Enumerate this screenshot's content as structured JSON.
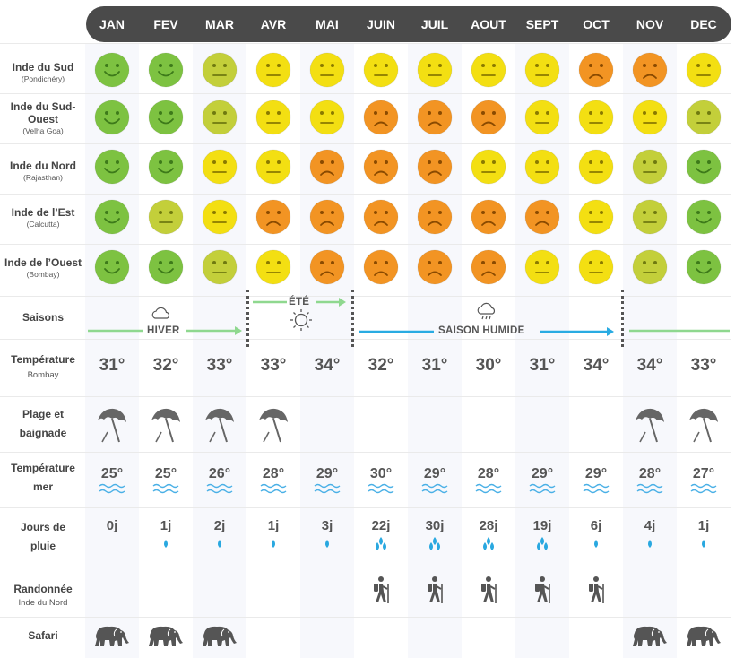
{
  "months": [
    "JAN",
    "FEV",
    "MAR",
    "AVR",
    "MAI",
    "JUIN",
    "JUIL",
    "AOUT",
    "SEPT",
    "OCT",
    "NOV",
    "DEC"
  ],
  "colors": {
    "green": "#7dc241",
    "lime": "#c3cf3a",
    "yellow": "#f3df12",
    "orange": "#f29423",
    "header_bg": "#4a4a4a",
    "winter_arrow": "#8fd88f",
    "wet_arrow": "#29abe2",
    "drop": "#29a8e0",
    "wave": "#4ab0e6"
  },
  "regions": [
    {
      "name": "Inde du Sud",
      "sub": "(Pondichéry)",
      "moods": [
        "happy",
        "happy",
        "neutral-lime",
        "neutral",
        "neutral",
        "neutral",
        "neutral",
        "neutral",
        "neutral",
        "sad",
        "sad",
        "neutral"
      ]
    },
    {
      "name": "Inde du Sud-Ouest",
      "sub": "(Velha Goa)",
      "moods": [
        "happy",
        "happy",
        "neutral-lime",
        "neutral",
        "neutral",
        "sad",
        "sad",
        "sad",
        "neutral",
        "neutral",
        "neutral",
        "neutral-lime"
      ]
    },
    {
      "name": "Inde du Nord",
      "sub": "(Rajasthan)",
      "moods": [
        "happy",
        "happy",
        "neutral",
        "neutral",
        "sad",
        "sad",
        "sad",
        "neutral",
        "neutral",
        "neutral",
        "neutral-lime",
        "happy"
      ]
    },
    {
      "name": "Inde de l’Est",
      "sub": "(Calcutta)",
      "moods": [
        "happy",
        "neutral-lime",
        "neutral",
        "sad",
        "sad",
        "sad",
        "sad",
        "sad",
        "sad",
        "neutral",
        "neutral-lime",
        "happy"
      ]
    },
    {
      "name": "Inde de l’Ouest",
      "sub": "(Bombay)",
      "moods": [
        "happy",
        "happy",
        "neutral-lime",
        "neutral",
        "sad",
        "sad",
        "sad",
        "sad",
        "neutral",
        "neutral",
        "neutral-lime",
        "happy"
      ]
    }
  ],
  "seasons": {
    "label": "Saisons",
    "winter": "HIVER",
    "summer": "ÉTÉ",
    "wet": "SAISON HUMIDE",
    "winter_icon": "cloud-icon",
    "summer_icon": "sun-icon",
    "wet_icon": "rain-cloud-icon"
  },
  "temperature": {
    "label": "Température",
    "sub": "Bombay",
    "values": [
      "31°",
      "32°",
      "33°",
      "33°",
      "34°",
      "32°",
      "31°",
      "30°",
      "31°",
      "34°",
      "34°",
      "33°"
    ]
  },
  "beach": {
    "label": "Plage et baignade",
    "icon": "beach-umbrella-icon",
    "months_on": [
      true,
      true,
      true,
      true,
      false,
      false,
      false,
      false,
      false,
      false,
      true,
      true
    ]
  },
  "sea_temperature": {
    "label": "Température mer",
    "values": [
      "25°",
      "25°",
      "26°",
      "28°",
      "29°",
      "30°",
      "29°",
      "28°",
      "29°",
      "29°",
      "28°",
      "27°"
    ],
    "icon": "waves-icon"
  },
  "rain_days": {
    "label": "Jours de pluie",
    "values": [
      "0j",
      "1j",
      "2j",
      "1j",
      "3j",
      "22j",
      "30j",
      "28j",
      "19j",
      "6j",
      "4j",
      "1j"
    ],
    "drops": [
      0,
      1,
      1,
      1,
      1,
      3,
      3,
      3,
      3,
      1,
      1,
      1
    ],
    "icon": "raindrop-icon"
  },
  "hiking": {
    "label": "Randonnée",
    "sub": "Inde du Nord",
    "icon": "hiker-icon",
    "months_on": [
      false,
      false,
      false,
      false,
      false,
      true,
      true,
      true,
      true,
      true,
      false,
      false
    ]
  },
  "safari": {
    "label": "Safari",
    "icon": "elephant-icon",
    "months_on": [
      true,
      true,
      true,
      false,
      false,
      false,
      false,
      false,
      false,
      false,
      true,
      true
    ]
  }
}
